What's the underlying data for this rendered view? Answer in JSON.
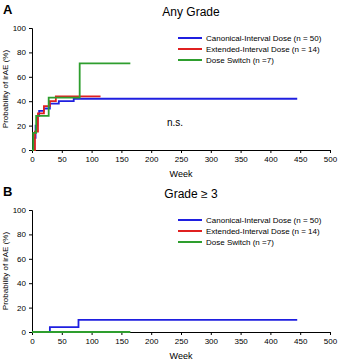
{
  "chart_data": [
    {
      "type": "line",
      "line_style": "step",
      "panel": "A",
      "title": "Any Grade",
      "x_label": "Week",
      "y_label": "Probability of irAE (%)",
      "xlim": [
        0,
        500
      ],
      "xticks": [
        0,
        50,
        100,
        150,
        200,
        250,
        300,
        350,
        400,
        450,
        500
      ],
      "ylim": [
        0,
        100
      ],
      "yticks": [
        0,
        20,
        40,
        60,
        80,
        100
      ],
      "legend": "upper right",
      "annotation": "n.s.",
      "series": [
        {
          "name": "Canonical-Interval Dose (n = 50)",
          "color": "#1f1fe0",
          "x": [
            0,
            3,
            6,
            9,
            12,
            20,
            30,
            45,
            70,
            445
          ],
          "values": [
            0,
            10,
            20,
            28,
            32,
            34,
            38,
            40,
            42,
            42
          ]
        },
        {
          "name": "Extended-Interval Dose (n = 14)",
          "color": "#e02020",
          "x": [
            0,
            5,
            10,
            20,
            30,
            40,
            115
          ],
          "values": [
            0,
            15,
            30,
            36,
            40,
            44,
            44
          ]
        },
        {
          "name": "Dose Switch (n =7)",
          "color": "#2e9e2e",
          "x": [
            0,
            2,
            7,
            28,
            80,
            165
          ],
          "values": [
            0,
            14,
            28,
            43,
            71,
            71
          ]
        }
      ]
    },
    {
      "type": "line",
      "line_style": "step",
      "panel": "B",
      "title": "Grade ≥ 3",
      "x_label": "Week",
      "y_label": "Probability of irAE (%)",
      "xlim": [
        0,
        500
      ],
      "xticks": [
        0,
        50,
        100,
        150,
        200,
        250,
        300,
        350,
        400,
        450,
        500
      ],
      "ylim": [
        0,
        100
      ],
      "yticks": [
        0,
        20,
        40,
        60,
        80,
        100
      ],
      "legend": "upper right",
      "series": [
        {
          "name": "Canonical-Interval Dose (n = 50)",
          "color": "#1f1fe0",
          "x": [
            0,
            30,
            78,
            445
          ],
          "values": [
            0,
            4,
            10,
            10
          ]
        },
        {
          "name": "Extended-Interval Dose (n = 14)",
          "color": "#e02020",
          "x": [
            0,
            115
          ],
          "values": [
            0,
            0
          ]
        },
        {
          "name": "Dose Switch (n =7)",
          "color": "#2e9e2e",
          "x": [
            0,
            165
          ],
          "values": [
            0,
            0
          ]
        }
      ]
    }
  ]
}
